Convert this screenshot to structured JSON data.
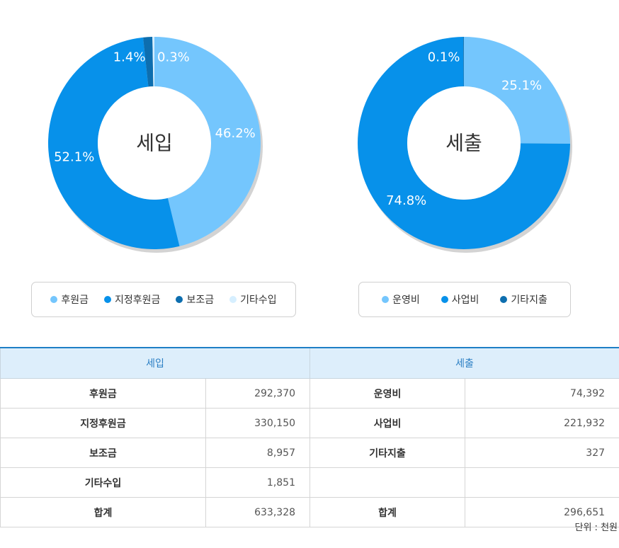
{
  "chart_data": [
    {
      "type": "pie",
      "title": "세입",
      "categories": [
        "후원금",
        "지정후원금",
        "보조금",
        "기타수입"
      ],
      "values": [
        46.2,
        52.1,
        1.4,
        0.3
      ],
      "labels": [
        "46.2%",
        "52.1%",
        "1.4%",
        "0.3%"
      ],
      "colors": [
        "#74c6fd",
        "#0791ea",
        "#0d6eaf",
        "#d6efff"
      ]
    },
    {
      "type": "pie",
      "title": "세출",
      "categories": [
        "운영비",
        "사업비",
        "기타지출"
      ],
      "values": [
        25.1,
        74.8,
        0.1
      ],
      "labels": [
        "25.1%",
        "74.8%",
        "0.1%"
      ],
      "colors": [
        "#74c6fd",
        "#0791ea",
        "#0d6eaf"
      ]
    }
  ],
  "table": {
    "headers": [
      "세입",
      "세출"
    ],
    "rows": [
      [
        "후원금",
        "292,370",
        "운영비",
        "74,392"
      ],
      [
        "지정후원금",
        "330,150",
        "사업비",
        "221,932"
      ],
      [
        "보조금",
        "8,957",
        "기타지출",
        "327"
      ],
      [
        "기타수입",
        "1,851",
        "",
        ""
      ],
      [
        "합계",
        "633,328",
        "합계",
        "296,651"
      ]
    ]
  },
  "unit_note": "단위 : 천원"
}
